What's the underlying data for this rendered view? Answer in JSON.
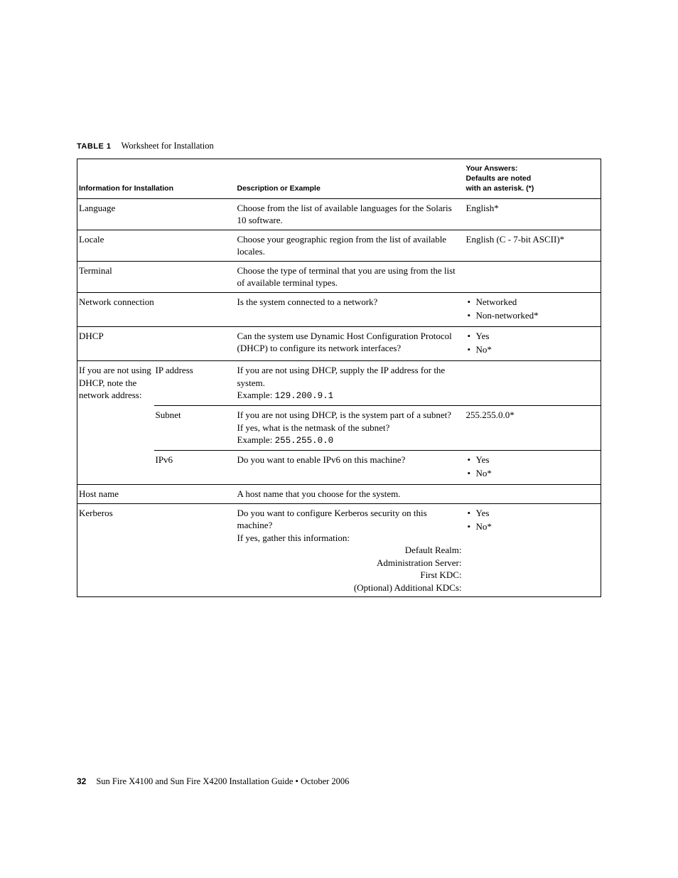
{
  "caption": {
    "label": "TABLE 1",
    "title": "Worksheet for Installation"
  },
  "head": {
    "col_info": "Information for Installation",
    "col_desc": "Description or Example",
    "col_ans_l1": "Your Answers:",
    "col_ans_l2": "Defaults are noted",
    "col_ans_l3": "with an asterisk. (*)"
  },
  "rows": {
    "language": {
      "label": "Language",
      "desc": "Choose from the list of available languages for the Solaris 10 software.",
      "ans": "English*"
    },
    "locale": {
      "label": "Locale",
      "desc": "Choose your geographic region from the list of available locales.",
      "ans": "English (C - 7-bit ASCII)*"
    },
    "terminal": {
      "label": "Terminal",
      "desc": "Choose the type of terminal that you are using from the list of available terminal types.",
      "ans": ""
    },
    "netconn": {
      "label": "Network connection",
      "desc": "Is the system connected to a network?",
      "ans_b1": "Networked",
      "ans_b2": "Non-networked*"
    },
    "dhcp": {
      "label": "DHCP",
      "desc": "Can the system use Dynamic Host Configuration Protocol (DHCP) to configure its network interfaces?",
      "ans_b1": "Yes",
      "ans_b2": "No*"
    },
    "dhcp_group": {
      "label": "If you are not using DHCP, note the network address:"
    },
    "ip": {
      "label": "IP address",
      "desc1": "If you are not using DHCP, supply the IP address for the system.",
      "desc2_pre": "Example: ",
      "desc2_mono": "129.200.9.1"
    },
    "subnet": {
      "label": "Subnet",
      "desc1": "If you are not using DHCP, is the system part of a subnet?",
      "desc2": "If yes, what is the netmask of the subnet?",
      "desc3_pre": "Example: ",
      "desc3_mono": "255.255.0.0",
      "ans": "255.255.0.0*"
    },
    "ipv6": {
      "label": "IPv6",
      "desc": "Do you want to enable IPv6 on this machine?",
      "ans_b1": "Yes",
      "ans_b2": "No*"
    },
    "hostname": {
      "label": "Host name",
      "desc": "A host name that you choose for the system.",
      "ans": ""
    },
    "kerberos": {
      "label": "Kerberos",
      "desc1": "Do you want to configure Kerberos security on this machine?",
      "desc2": "If yes, gather this information:",
      "k1": "Default Realm:",
      "k2": "Administration Server:",
      "k3": "First KDC:",
      "k4": "(Optional) Additional KDCs:",
      "ans_b1": "Yes",
      "ans_b2": "No*"
    }
  },
  "footer": {
    "page": "32",
    "text": "Sun Fire X4100 and Sun Fire X4200 Installation Guide • October 2006"
  },
  "columns": {
    "c1": "108px",
    "c2": "115px",
    "c3": "322px",
    "c4": "192px"
  }
}
